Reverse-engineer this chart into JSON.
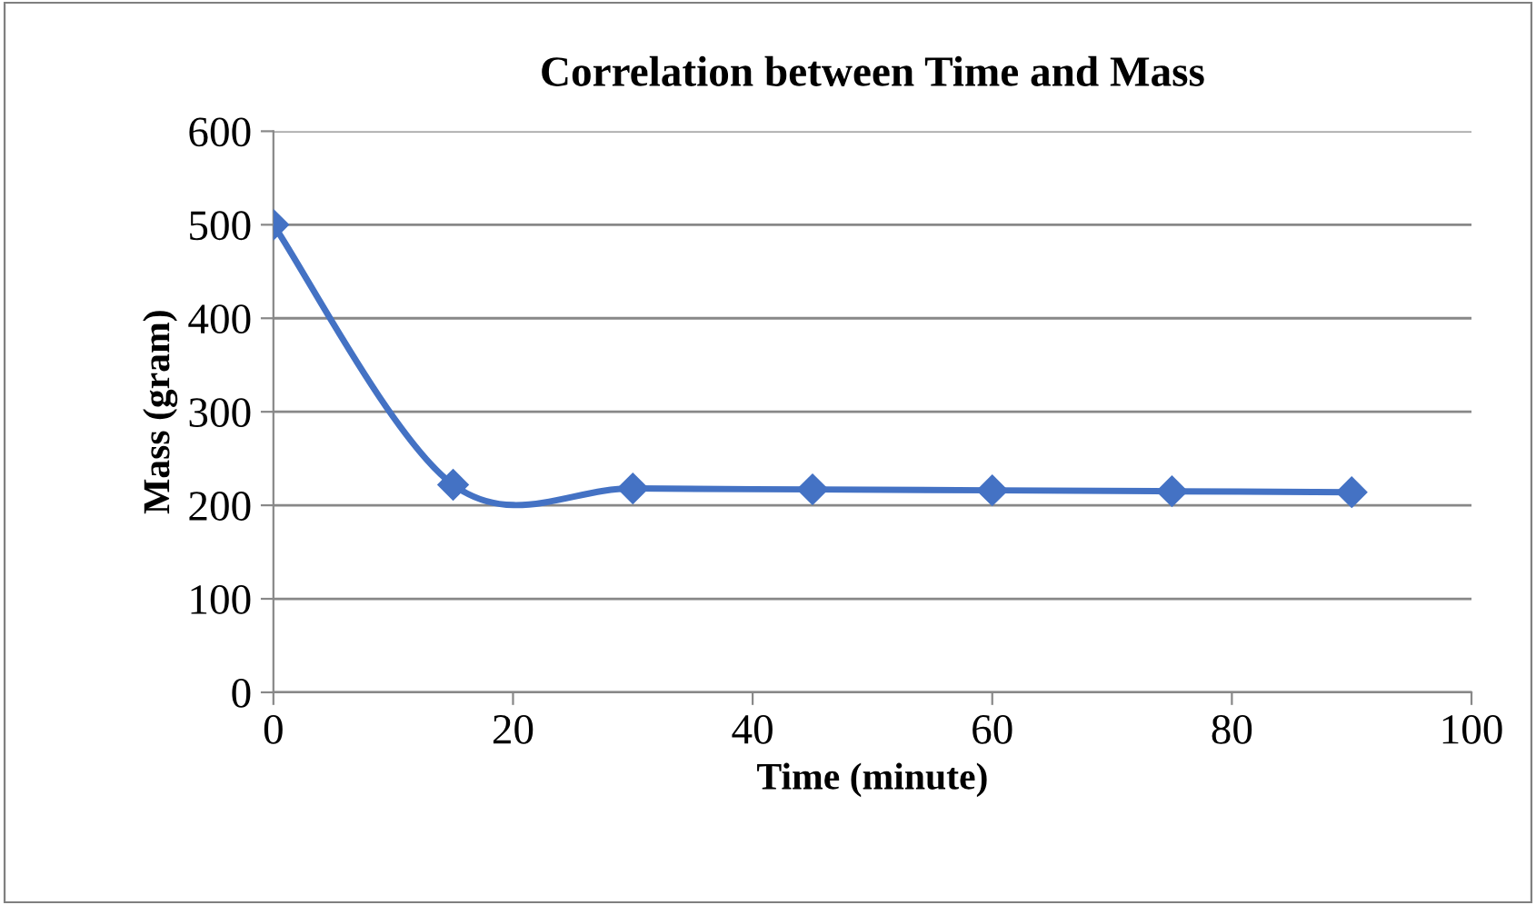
{
  "chart_data": {
    "type": "line",
    "title": "Correlation between Time and Mass",
    "xlabel": "Time (minute)",
    "ylabel": "Mass (gram)",
    "x": [
      0,
      15,
      30,
      45,
      60,
      75,
      90
    ],
    "series": [
      {
        "color": "#4472c4",
        "values": [
          500,
          222,
          218,
          217,
          216,
          215,
          214
        ]
      }
    ],
    "xlim": [
      0,
      100
    ],
    "xticks": [
      0,
      20,
      40,
      60,
      80,
      100
    ],
    "ylim": [
      0,
      600
    ],
    "yticks": [
      0,
      100,
      200,
      300,
      400,
      500,
      600
    ],
    "grid": "y",
    "marker": "diamond",
    "line_style": "solid",
    "legend": false
  }
}
